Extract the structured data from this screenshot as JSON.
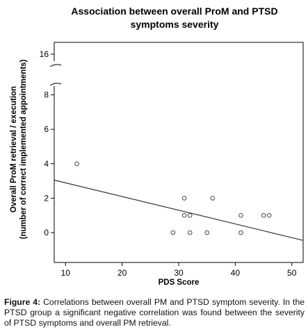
{
  "chart_data": {
    "type": "scatter",
    "title_lines": [
      "Association between overall ProM and PTSD",
      "symptoms severity"
    ],
    "xlabel": "PDS Score",
    "ylabel_lines": [
      "Overall ProM retrieval / execution",
      "(number of correct implemented appointments)"
    ],
    "xlim": [
      8,
      52
    ],
    "x_ticks": [
      10,
      20,
      30,
      40,
      50
    ],
    "y_ticks": [
      0,
      2,
      4,
      6,
      8,
      16
    ],
    "y_axis_break": "between 8 and 16",
    "grid": false,
    "points": [
      {
        "x": 12,
        "y": 4
      },
      {
        "x": 29,
        "y": 0
      },
      {
        "x": 31,
        "y": 2
      },
      {
        "x": 31,
        "y": 1
      },
      {
        "x": 32,
        "y": 1
      },
      {
        "x": 32,
        "y": 0
      },
      {
        "x": 35,
        "y": 0
      },
      {
        "x": 36,
        "y": 2
      },
      {
        "x": 41,
        "y": 1
      },
      {
        "x": 41,
        "y": 0
      },
      {
        "x": 45,
        "y": 1
      },
      {
        "x": 46,
        "y": 1
      }
    ],
    "fit_line": {
      "x": [
        8,
        52
      ],
      "y": [
        3.05,
        -0.45
      ]
    }
  },
  "caption": {
    "label": "Figure 4:",
    "text": "Correlations between overall PM and PTSD symptom severity. In the PTSD group a significant negative correlation was found between the severity of PTSD symptoms and overall PM retrieval."
  }
}
